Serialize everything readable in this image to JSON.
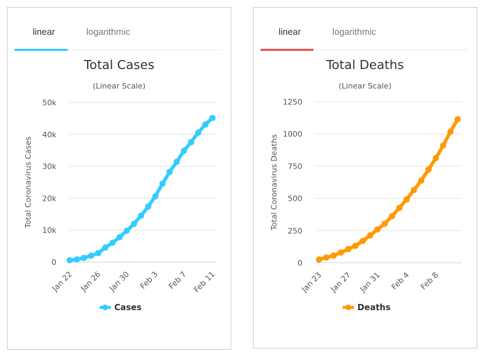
{
  "panels": [
    {
      "tabs": [
        {
          "label": "linear",
          "active": true
        },
        {
          "label": "logarithmic",
          "active": false
        }
      ],
      "accent": "#33ccff",
      "tab_underline_color": "#33ccff"
    },
    {
      "tabs": [
        {
          "label": "linear",
          "active": true
        },
        {
          "label": "logarithmic",
          "active": false
        }
      ],
      "accent": "#ff9900",
      "tab_underline_color": "#ea5455"
    }
  ],
  "chart_data": [
    {
      "type": "line",
      "title": "Total Cases",
      "subtitle": "(Linear Scale)",
      "ylabel": "Total Coronavirus Cases",
      "xlabel": "",
      "ylim": [
        0,
        50000
      ],
      "yticks": [
        0,
        10000,
        20000,
        30000,
        40000,
        50000
      ],
      "ytick_labels": [
        "0",
        "10k",
        "20k",
        "30k",
        "40k",
        "50k"
      ],
      "x": [
        "Jan 22",
        "Jan 23",
        "Jan 24",
        "Jan 25",
        "Jan 26",
        "Jan 27",
        "Jan 28",
        "Jan 29",
        "Jan 30",
        "Jan 31",
        "Feb 1",
        "Feb 2",
        "Feb 3",
        "Feb 4",
        "Feb 5",
        "Feb 6",
        "Feb 7",
        "Feb 8",
        "Feb 9",
        "Feb 10",
        "Feb 11"
      ],
      "xtick_labels": [
        "Jan 22",
        "Jan 26",
        "Jan 30",
        "Feb 3",
        "Feb 7",
        "Feb 11"
      ],
      "xtick_step": 4,
      "grid": true,
      "legend": "bottom-center",
      "series": [
        {
          "name": "Cases",
          "color": "#33ccff",
          "values": [
            580,
            845,
            1317,
            2015,
            2800,
            4581,
            6058,
            7813,
            9823,
            11948,
            14551,
            17389,
            20628,
            24553,
            28276,
            31439,
            34876,
            37552,
            40553,
            43099,
            45134
          ]
        }
      ]
    },
    {
      "type": "line",
      "title": "Total Deaths",
      "subtitle": "(Linear Scale)",
      "ylabel": "Total Coronavirus Deaths",
      "xlabel": "",
      "ylim": [
        0,
        1250
      ],
      "yticks": [
        0,
        250,
        500,
        750,
        1000,
        1250
      ],
      "ytick_labels": [
        "0",
        "250",
        "500",
        "750",
        "1000",
        "1250"
      ],
      "x": [
        "Jan 23",
        "Jan 24",
        "Jan 25",
        "Jan 26",
        "Jan 27",
        "Jan 28",
        "Jan 29",
        "Jan 30",
        "Jan 31",
        "Feb 1",
        "Feb 2",
        "Feb 3",
        "Feb 4",
        "Feb 5",
        "Feb 6",
        "Feb 7",
        "Feb 8",
        "Feb 9",
        "Feb 10",
        "Feb 11"
      ],
      "xtick_labels": [
        "Jan 23",
        "Jan 27",
        "Jan 31",
        "Feb 4",
        "Feb 8"
      ],
      "xtick_step": 4,
      "grid": true,
      "legend": "bottom-center",
      "series": [
        {
          "name": "Deaths",
          "color": "#ff9900",
          "values": [
            25,
            41,
            56,
            80,
            106,
            132,
            170,
            213,
            259,
            304,
            362,
            426,
            492,
            565,
            638,
            724,
            813,
            910,
            1018,
            1115
          ]
        }
      ]
    }
  ]
}
